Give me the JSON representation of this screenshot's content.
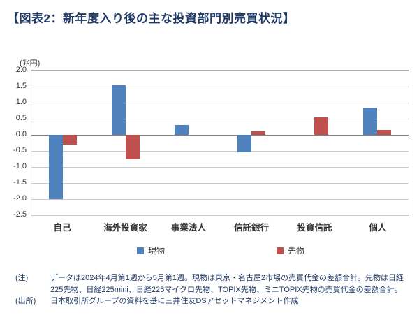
{
  "title": "【図表2：新年度入り後の主な投資部門別売買状況】",
  "chart_data": {
    "type": "bar",
    "title": "図表2：新年度入り後の主な投資部門別売買状況",
    "categories": [
      "自己",
      "海外投資家",
      "事業法人",
      "信託銀行",
      "投資信託",
      "個人"
    ],
    "series": [
      {
        "name": "現物",
        "color": "#4F81BD",
        "values": [
          -2.0,
          1.55,
          0.3,
          -0.55,
          0.0,
          0.85
        ]
      },
      {
        "name": "先物",
        "color": "#C0504D",
        "values": [
          -0.3,
          -0.75,
          0.0,
          0.1,
          0.55,
          0.15
        ]
      }
    ],
    "xlabel": "",
    "ylabel": "(兆円)",
    "ylim": [
      -2.5,
      2.0
    ],
    "yticks": [
      2.0,
      1.5,
      1.0,
      0.5,
      0.0,
      -0.5,
      -1.0,
      -1.5,
      -2.0,
      -2.5
    ],
    "grid": true,
    "legend_position": "bottom"
  },
  "notes": {
    "note_label": "(注)",
    "note_text": "データは2024年4月第1週から5月第1週。現物は東京・名古屋2市場の売買代金の差額合計。先物は日経225先物、日経225mini、日経225マイクロ先物、TOPIX先物、ミニTOPIX先物の売買代金の差額合計。",
    "source_label": "(出所)",
    "source_text": "日本取引所グループの資料を基に三井住友DSアセットマネジメント作成"
  },
  "colors": {
    "title_text": "#1F3864",
    "notes_text": "#1F3864",
    "gridline": "#C9C9C9",
    "zero_line": "#7F7F7F",
    "series_cash": "#4F81BD",
    "series_futures": "#C0504D"
  }
}
